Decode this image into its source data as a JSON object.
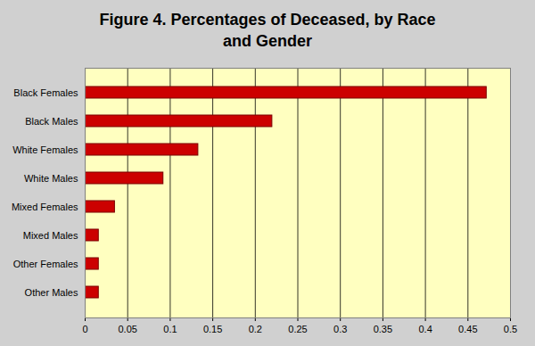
{
  "chart_data": {
    "type": "bar",
    "title": "Figure 4. Percentages of Deceased, by Race and Gender",
    "orientation": "horizontal",
    "categories": [
      "Black Females",
      "Black Males",
      "White Females",
      "White Males",
      "Mixed Females",
      "Mixed Males",
      "Other Females",
      "Other Males"
    ],
    "values": [
      0.472,
      0.22,
      0.133,
      0.092,
      0.035,
      0.016,
      0.016,
      0.016
    ],
    "color": "#cc0000",
    "xlim": [
      0,
      0.5
    ],
    "xticks": [
      0,
      0.05,
      0.1,
      0.15,
      0.2,
      0.25,
      0.3,
      0.35,
      0.4,
      0.45,
      0.5
    ],
    "grid": true
  }
}
